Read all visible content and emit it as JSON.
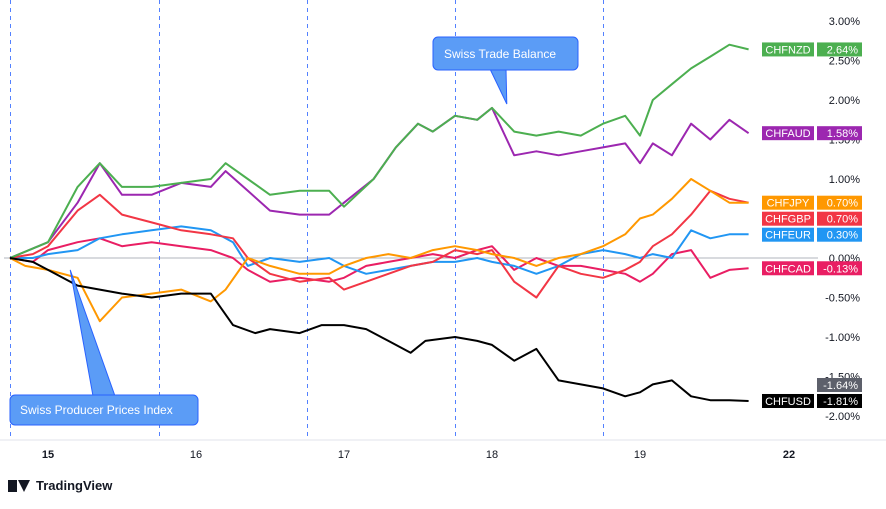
{
  "chart_data": {
    "type": "line",
    "y_unit": "%",
    "ylim": [
      -2.05,
      3.05
    ],
    "y_ticks": [
      "3.00%",
      "2.50%",
      "2.00%",
      "1.50%",
      "1.00%",
      "0.50%",
      "0.00%",
      "-0.50%",
      "-1.00%",
      "-1.50%",
      "-2.00%"
    ],
    "y_tick_values": [
      3.0,
      2.5,
      2.0,
      1.5,
      1.0,
      0.5,
      0.0,
      -0.5,
      -1.0,
      -1.5,
      -2.0
    ],
    "x_range": [
      15,
      22
    ],
    "x_tick_labels": [
      "15",
      "16",
      "17",
      "18",
      "19",
      "22"
    ],
    "x_tick_values": [
      15,
      16,
      17,
      18,
      19,
      22
    ],
    "day_separators": [
      14.75,
      15.75,
      16.75,
      17.75,
      18.75
    ],
    "grid": "none",
    "zero_line": true,
    "series": [
      {
        "name": "CHFNZD",
        "value_label": "2.64%",
        "color": "#4caf50",
        "points": [
          [
            14.75,
            0.0
          ],
          [
            15.0,
            0.2
          ],
          [
            15.2,
            0.9
          ],
          [
            15.35,
            1.2
          ],
          [
            15.5,
            0.9
          ],
          [
            15.7,
            0.9
          ],
          [
            15.9,
            0.95
          ],
          [
            16.1,
            1.0
          ],
          [
            16.2,
            1.2
          ],
          [
            16.35,
            1.0
          ],
          [
            16.5,
            0.8
          ],
          [
            16.7,
            0.85
          ],
          [
            16.9,
            0.85
          ],
          [
            17.0,
            0.65
          ],
          [
            17.2,
            1.0
          ],
          [
            17.35,
            1.4
          ],
          [
            17.5,
            1.7
          ],
          [
            17.6,
            1.6
          ],
          [
            17.75,
            1.8
          ],
          [
            17.9,
            1.75
          ],
          [
            18.0,
            1.9
          ],
          [
            18.15,
            1.6
          ],
          [
            18.3,
            1.55
          ],
          [
            18.45,
            1.6
          ],
          [
            18.6,
            1.55
          ],
          [
            18.75,
            1.7
          ],
          [
            18.9,
            1.8
          ],
          [
            19.0,
            1.55
          ],
          [
            19.1,
            2.0
          ],
          [
            19.25,
            2.2
          ],
          [
            19.4,
            2.4
          ],
          [
            19.55,
            2.55
          ],
          [
            19.7,
            2.7
          ],
          [
            19.85,
            2.64
          ]
        ]
      },
      {
        "name": "CHFAUD",
        "value_label": "1.58%",
        "color": "#9c27b0",
        "points": [
          [
            14.75,
            0.0
          ],
          [
            15.0,
            0.2
          ],
          [
            15.2,
            0.7
          ],
          [
            15.35,
            1.2
          ],
          [
            15.5,
            0.8
          ],
          [
            15.7,
            0.8
          ],
          [
            15.9,
            0.95
          ],
          [
            16.1,
            0.9
          ],
          [
            16.2,
            1.1
          ],
          [
            16.35,
            0.85
          ],
          [
            16.5,
            0.6
          ],
          [
            16.7,
            0.55
          ],
          [
            16.9,
            0.55
          ],
          [
            17.0,
            0.7
          ],
          [
            17.2,
            1.0
          ],
          [
            17.35,
            1.4
          ],
          [
            17.5,
            1.7
          ],
          [
            17.6,
            1.6
          ],
          [
            17.75,
            1.8
          ],
          [
            17.9,
            1.75
          ],
          [
            18.0,
            1.9
          ],
          [
            18.15,
            1.3
          ],
          [
            18.3,
            1.35
          ],
          [
            18.45,
            1.3
          ],
          [
            18.6,
            1.35
          ],
          [
            18.75,
            1.4
          ],
          [
            18.9,
            1.45
          ],
          [
            19.0,
            1.2
          ],
          [
            19.1,
            1.45
          ],
          [
            19.25,
            1.3
          ],
          [
            19.4,
            1.7
          ],
          [
            19.55,
            1.5
          ],
          [
            19.7,
            1.75
          ],
          [
            19.85,
            1.58
          ]
        ]
      },
      {
        "name": "CHFJPY",
        "value_label": "0.70%",
        "color": "#ff9800",
        "points": [
          [
            14.75,
            0.0
          ],
          [
            14.85,
            -0.1
          ],
          [
            15.0,
            -0.15
          ],
          [
            15.2,
            -0.25
          ],
          [
            15.35,
            -0.8
          ],
          [
            15.5,
            -0.5
          ],
          [
            15.7,
            -0.45
          ],
          [
            15.9,
            -0.4
          ],
          [
            16.1,
            -0.55
          ],
          [
            16.2,
            -0.4
          ],
          [
            16.35,
            0.0
          ],
          [
            16.5,
            -0.1
          ],
          [
            16.7,
            -0.2
          ],
          [
            16.9,
            -0.2
          ],
          [
            17.0,
            -0.1
          ],
          [
            17.15,
            0.0
          ],
          [
            17.3,
            0.05
          ],
          [
            17.45,
            0.0
          ],
          [
            17.6,
            0.1
          ],
          [
            17.75,
            0.15
          ],
          [
            17.9,
            0.1
          ],
          [
            18.0,
            0.05
          ],
          [
            18.15,
            0.0
          ],
          [
            18.3,
            -0.1
          ],
          [
            18.45,
            0.0
          ],
          [
            18.6,
            0.05
          ],
          [
            18.75,
            0.15
          ],
          [
            18.9,
            0.3
          ],
          [
            19.0,
            0.5
          ],
          [
            19.1,
            0.55
          ],
          [
            19.25,
            0.75
          ],
          [
            19.4,
            1.0
          ],
          [
            19.55,
            0.85
          ],
          [
            19.7,
            0.7
          ],
          [
            19.85,
            0.7
          ]
        ]
      },
      {
        "name": "CHFGBP",
        "value_label": "0.70%",
        "color": "#f23645",
        "points": [
          [
            14.75,
            0.0
          ],
          [
            14.9,
            0.05
          ],
          [
            15.0,
            0.15
          ],
          [
            15.2,
            0.6
          ],
          [
            15.35,
            0.8
          ],
          [
            15.5,
            0.55
          ],
          [
            15.7,
            0.45
          ],
          [
            15.9,
            0.35
          ],
          [
            16.1,
            0.3
          ],
          [
            16.25,
            0.25
          ],
          [
            16.35,
            0.0
          ],
          [
            16.5,
            -0.2
          ],
          [
            16.7,
            -0.3
          ],
          [
            16.9,
            -0.25
          ],
          [
            17.0,
            -0.4
          ],
          [
            17.15,
            -0.3
          ],
          [
            17.3,
            -0.2
          ],
          [
            17.45,
            -0.1
          ],
          [
            17.6,
            -0.05
          ],
          [
            17.75,
            0.1
          ],
          [
            17.9,
            0.05
          ],
          [
            18.0,
            0.1
          ],
          [
            18.15,
            -0.3
          ],
          [
            18.3,
            -0.5
          ],
          [
            18.45,
            -0.1
          ],
          [
            18.6,
            -0.2
          ],
          [
            18.75,
            -0.25
          ],
          [
            18.9,
            -0.15
          ],
          [
            19.0,
            -0.05
          ],
          [
            19.1,
            0.15
          ],
          [
            19.25,
            0.3
          ],
          [
            19.4,
            0.55
          ],
          [
            19.55,
            0.85
          ],
          [
            19.7,
            0.75
          ],
          [
            19.85,
            0.7
          ]
        ]
      },
      {
        "name": "CHFEUR",
        "value_label": "0.30%",
        "color": "#2196f3",
        "points": [
          [
            14.75,
            0.0
          ],
          [
            14.9,
            0.0
          ],
          [
            15.0,
            0.05
          ],
          [
            15.2,
            0.1
          ],
          [
            15.35,
            0.25
          ],
          [
            15.5,
            0.3
          ],
          [
            15.7,
            0.35
          ],
          [
            15.9,
            0.4
          ],
          [
            16.1,
            0.35
          ],
          [
            16.25,
            0.2
          ],
          [
            16.35,
            -0.1
          ],
          [
            16.5,
            0.0
          ],
          [
            16.7,
            -0.05
          ],
          [
            16.9,
            0.0
          ],
          [
            17.0,
            -0.1
          ],
          [
            17.15,
            -0.2
          ],
          [
            17.3,
            -0.15
          ],
          [
            17.45,
            -0.1
          ],
          [
            17.6,
            -0.05
          ],
          [
            17.75,
            -0.05
          ],
          [
            17.9,
            0.0
          ],
          [
            18.0,
            -0.05
          ],
          [
            18.15,
            -0.1
          ],
          [
            18.3,
            -0.2
          ],
          [
            18.45,
            -0.1
          ],
          [
            18.6,
            0.05
          ],
          [
            18.75,
            0.1
          ],
          [
            18.9,
            0.05
          ],
          [
            19.0,
            0.0
          ],
          [
            19.1,
            0.05
          ],
          [
            19.25,
            0.0
          ],
          [
            19.4,
            0.35
          ],
          [
            19.55,
            0.25
          ],
          [
            19.7,
            0.3
          ],
          [
            19.85,
            0.3
          ]
        ]
      },
      {
        "name": "CHFCAD",
        "value_label": "-0.13%",
        "color": "#e91e63",
        "points": [
          [
            14.75,
            0.0
          ],
          [
            14.9,
            -0.05
          ],
          [
            15.0,
            0.1
          ],
          [
            15.2,
            0.2
          ],
          [
            15.35,
            0.25
          ],
          [
            15.5,
            0.15
          ],
          [
            15.7,
            0.2
          ],
          [
            15.9,
            0.15
          ],
          [
            16.1,
            0.1
          ],
          [
            16.25,
            0.0
          ],
          [
            16.35,
            -0.15
          ],
          [
            16.5,
            -0.3
          ],
          [
            16.7,
            -0.25
          ],
          [
            16.9,
            -0.3
          ],
          [
            17.0,
            -0.25
          ],
          [
            17.15,
            -0.1
          ],
          [
            17.3,
            -0.05
          ],
          [
            17.45,
            0.0
          ],
          [
            17.6,
            0.05
          ],
          [
            17.75,
            0.0
          ],
          [
            17.9,
            0.1
          ],
          [
            18.0,
            0.15
          ],
          [
            18.15,
            -0.15
          ],
          [
            18.3,
            0.0
          ],
          [
            18.45,
            -0.1
          ],
          [
            18.6,
            -0.1
          ],
          [
            18.75,
            -0.15
          ],
          [
            18.9,
            -0.2
          ],
          [
            19.0,
            -0.3
          ],
          [
            19.1,
            -0.2
          ],
          [
            19.25,
            0.05
          ],
          [
            19.4,
            0.1
          ],
          [
            19.55,
            -0.25
          ],
          [
            19.7,
            -0.15
          ],
          [
            19.85,
            -0.13
          ]
        ]
      },
      {
        "name": "CHFUSD",
        "value_label": "-1.81%",
        "color": "#000000",
        "points": [
          [
            14.75,
            0.0
          ],
          [
            14.9,
            -0.05
          ],
          [
            15.0,
            -0.15
          ],
          [
            15.2,
            -0.35
          ],
          [
            15.35,
            -0.4
          ],
          [
            15.5,
            -0.45
          ],
          [
            15.7,
            -0.5
          ],
          [
            15.9,
            -0.45
          ],
          [
            16.1,
            -0.45
          ],
          [
            16.25,
            -0.85
          ],
          [
            16.4,
            -0.95
          ],
          [
            16.5,
            -0.9
          ],
          [
            16.7,
            -0.95
          ],
          [
            16.85,
            -0.85
          ],
          [
            17.0,
            -0.85
          ],
          [
            17.15,
            -0.9
          ],
          [
            17.3,
            -1.05
          ],
          [
            17.45,
            -1.2
          ],
          [
            17.55,
            -1.05
          ],
          [
            17.75,
            -1.0
          ],
          [
            17.9,
            -1.05
          ],
          [
            18.0,
            -1.1
          ],
          [
            18.15,
            -1.3
          ],
          [
            18.3,
            -1.15
          ],
          [
            18.45,
            -1.55
          ],
          [
            18.6,
            -1.6
          ],
          [
            18.75,
            -1.65
          ],
          [
            18.9,
            -1.75
          ],
          [
            19.0,
            -1.7
          ],
          [
            19.1,
            -1.6
          ],
          [
            19.25,
            -1.55
          ],
          [
            19.4,
            -1.75
          ],
          [
            19.55,
            -1.8
          ],
          [
            19.7,
            -1.8
          ],
          [
            19.85,
            -1.81
          ]
        ]
      }
    ],
    "price_tags": [
      {
        "series": "CHFUSD",
        "value": -1.64,
        "label": "-1.64%",
        "color": "#5d606b"
      }
    ],
    "annotations": [
      {
        "text": "Swiss Trade Balance",
        "x": 18.1,
        "y": 1.95
      },
      {
        "text": "Swiss Producer Prices Index",
        "x": 15.15,
        "y": -0.15
      }
    ]
  },
  "branding": {
    "text": "TradingView"
  }
}
